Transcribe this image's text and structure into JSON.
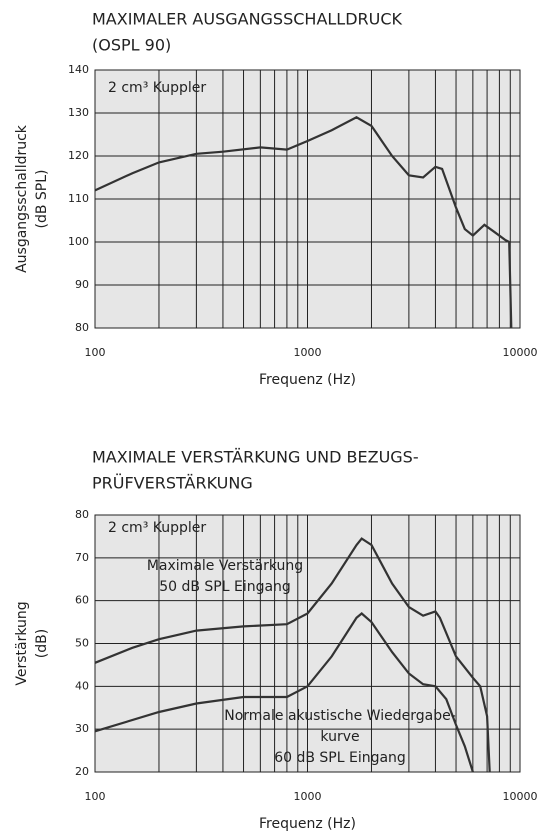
{
  "chart_data": [
    {
      "type": "line",
      "title": [
        "MAXIMALER AUSGANGSSCHALLDRUCK",
        "(OSPL 90)"
      ],
      "xlabel": "Frequenz (Hz)",
      "ylabel": [
        "Ausgangsschalldruck",
        "(dB SPL)"
      ],
      "annotations": [
        [
          "2 cm³ Kuppler"
        ]
      ],
      "xscale": "log",
      "xlim": [
        100,
        10000
      ],
      "ylim": [
        80,
        140
      ],
      "xticks": [
        100,
        1000,
        10000
      ],
      "xminorticks": [
        200,
        300,
        400,
        500,
        600,
        700,
        800,
        900,
        2000,
        3000,
        4000,
        5000,
        6000,
        7000,
        8000,
        9000
      ],
      "yticks": [
        80,
        90,
        100,
        110,
        120,
        130,
        140
      ],
      "grid": true,
      "background": "#e6e6e6",
      "series": [
        {
          "color": "#333333",
          "x": [
            100,
            150,
            200,
            300,
            400,
            600,
            800,
            1000,
            1300,
            1700,
            2000,
            2500,
            3000,
            3500,
            4000,
            4300,
            5000,
            5500,
            6000,
            6800,
            7500,
            8500,
            8900,
            9100
          ],
          "values": [
            112,
            116,
            118.5,
            120.5,
            121,
            122,
            121.5,
            123.5,
            126,
            129,
            127,
            120,
            115.5,
            115,
            117.5,
            117,
            108,
            103,
            101.5,
            104,
            102.5,
            100.5,
            100,
            80
          ]
        }
      ]
    },
    {
      "type": "line",
      "title": [
        "MAXIMALE VERSTÄRKUNG UND BEZUGS-",
        "PRÜFVERSTÄRKUNG"
      ],
      "xlabel": "Frequenz (Hz)",
      "ylabel": [
        "Verstärkung",
        "(dB)"
      ],
      "annotations": [
        [
          "2 cm³ Kuppler"
        ],
        [
          "Maximale Verstärkung",
          "50 dB SPL Eingang"
        ],
        [
          "Normale akustische Wiedergabe-",
          "kurve",
          "60 dB SPL Eingang"
        ]
      ],
      "xscale": "log",
      "xlim": [
        100,
        10000
      ],
      "ylim": [
        20,
        80
      ],
      "xticks": [
        100,
        1000,
        10000
      ],
      "xminorticks": [
        200,
        300,
        400,
        500,
        600,
        700,
        800,
        900,
        2000,
        3000,
        4000,
        5000,
        6000,
        7000,
        8000,
        9000
      ],
      "yticks": [
        20,
        30,
        40,
        50,
        60,
        70,
        80
      ],
      "grid": true,
      "background": "#e6e6e6",
      "series": [
        {
          "color": "#333333",
          "x": [
            100,
            150,
            200,
            300,
            500,
            800,
            1000,
            1300,
            1700,
            1800,
            2000,
            2500,
            3000,
            3500,
            4000,
            4200,
            5000,
            6000,
            6500,
            7000,
            7200
          ],
          "values": [
            45.5,
            49,
            51,
            53,
            54,
            54.5,
            57,
            64,
            73,
            74.5,
            73,
            64,
            58.5,
            56.5,
            57.5,
            56,
            47,
            42,
            40,
            33,
            20
          ]
        },
        {
          "color": "#333333",
          "x": [
            100,
            200,
            300,
            500,
            800,
            1000,
            1300,
            1700,
            1800,
            2000,
            2500,
            3000,
            3500,
            4000,
            4500,
            5000,
            5500,
            6000
          ],
          "values": [
            29.5,
            34,
            36,
            37.5,
            37.5,
            40,
            47,
            56,
            57,
            55,
            48,
            43,
            40.5,
            40,
            37,
            31,
            26,
            20
          ]
        }
      ]
    }
  ]
}
